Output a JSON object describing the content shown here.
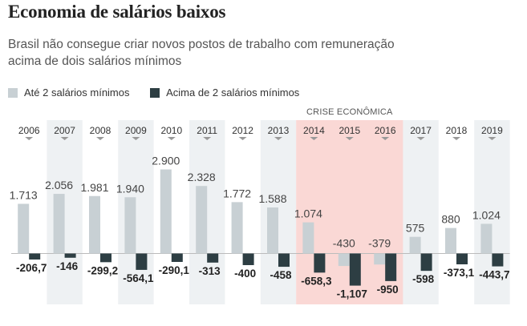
{
  "title": "Economia de salários baixos",
  "subtitle": "Brasil não consegue criar novos postos de trabalho com remuneração acima de dois salários mínimos",
  "chart_data": {
    "type": "bar",
    "title": "Economia de salários baixos",
    "categories": [
      "2006",
      "2007",
      "2008",
      "2009",
      "2010",
      "2011",
      "2012",
      "2013",
      "2014",
      "2015",
      "2016",
      "2017",
      "2018",
      "2019"
    ],
    "series": [
      {
        "name": "Até 2 salários mínimos",
        "color": "#c8d0d4",
        "values": [
          1713,
          2056,
          1981,
          1940,
          2900,
          2328,
          1772,
          1588,
          1074,
          -430,
          -379,
          575,
          880,
          1024
        ],
        "labels": [
          "1.713",
          "2.056",
          "1.981",
          "1.940",
          "2.900",
          "2.328",
          "1.772",
          "1.588",
          "1.074",
          "-430",
          "-379",
          "575",
          "880",
          "1.024"
        ]
      },
      {
        "name": "Acima de 2 salários mínimos",
        "color": "#2d3e43",
        "values": [
          -206.7,
          -146,
          -299.2,
          -564.1,
          -290.1,
          -313,
          -400,
          -458,
          -658.3,
          -1107,
          -950,
          -598,
          -373.1,
          -443.7
        ],
        "labels": [
          "-206,7",
          "-146",
          "-299,2",
          "-564,1",
          "-290,1",
          "-313",
          "-400",
          "-458",
          "-658,3",
          "-1,107",
          "-950",
          "-598",
          "-373,1",
          "-443,7"
        ]
      }
    ],
    "annotation": {
      "text": "CRISE ECONÔMICA",
      "years": [
        "2014",
        "2015",
        "2016"
      ]
    },
    "ylim": [
      -1300,
      3300
    ],
    "legend": "top-left",
    "grid": false
  }
}
